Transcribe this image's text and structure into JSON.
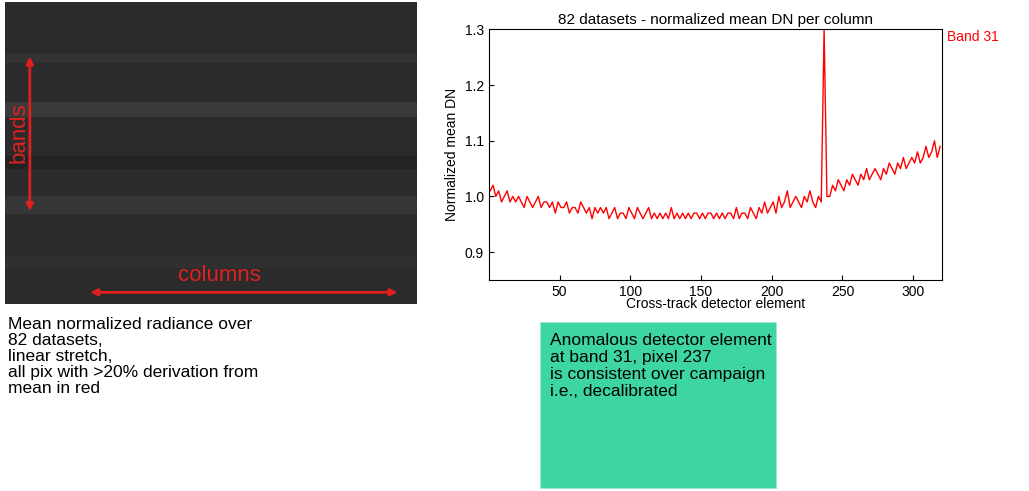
{
  "image_panel": {
    "vertical_label": "bands",
    "horizontal_label": "columns",
    "caption": "Mean normalized radiance over\n82 datasets,\nlinear stretch,\nall pix with >20% derivation from\nmean in red"
  },
  "chart_data": {
    "type": "line",
    "title": "82 datasets - normalized mean DN per column",
    "x_label": "Cross-track detector element",
    "y_label": "Normalized mean DN",
    "x": [
      1,
      3,
      5,
      7,
      9,
      11,
      13,
      15,
      17,
      19,
      21,
      23,
      25,
      27,
      29,
      31,
      33,
      35,
      37,
      39,
      41,
      43,
      45,
      47,
      49,
      51,
      53,
      55,
      57,
      59,
      61,
      63,
      65,
      67,
      69,
      71,
      73,
      75,
      77,
      79,
      81,
      83,
      85,
      87,
      89,
      91,
      93,
      95,
      97,
      99,
      101,
      103,
      105,
      107,
      109,
      111,
      113,
      115,
      117,
      119,
      121,
      123,
      125,
      127,
      129,
      131,
      133,
      135,
      137,
      139,
      141,
      143,
      145,
      147,
      149,
      151,
      153,
      155,
      157,
      159,
      161,
      163,
      165,
      167,
      169,
      171,
      173,
      175,
      177,
      179,
      181,
      183,
      185,
      187,
      189,
      191,
      193,
      195,
      197,
      199,
      201,
      203,
      205,
      207,
      209,
      211,
      213,
      215,
      217,
      219,
      221,
      223,
      225,
      227,
      229,
      231,
      233,
      235,
      237,
      239,
      241,
      243,
      245,
      247,
      249,
      251,
      253,
      255,
      257,
      259,
      261,
      263,
      265,
      267,
      269,
      271,
      273,
      275,
      277,
      279,
      281,
      283,
      285,
      287,
      289,
      291,
      293,
      295,
      297,
      299,
      301,
      303,
      305,
      307,
      309,
      311,
      313,
      315,
      317,
      319
    ],
    "series": [
      {
        "name": "Band 31",
        "color": "#ff0000",
        "values": [
          1.01,
          1.02,
          1.0,
          1.01,
          0.99,
          1.0,
          1.01,
          0.99,
          1.0,
          0.99,
          1.0,
          0.99,
          0.98,
          1.0,
          0.99,
          0.98,
          0.99,
          1.0,
          0.98,
          0.99,
          0.99,
          0.98,
          0.99,
          0.97,
          0.99,
          0.98,
          0.98,
          0.99,
          0.97,
          0.98,
          0.98,
          0.97,
          0.99,
          0.98,
          0.97,
          0.98,
          0.96,
          0.98,
          0.97,
          0.98,
          0.97,
          0.98,
          0.96,
          0.97,
          0.98,
          0.96,
          0.97,
          0.97,
          0.96,
          0.98,
          0.97,
          0.96,
          0.98,
          0.97,
          0.96,
          0.97,
          0.98,
          0.96,
          0.97,
          0.96,
          0.97,
          0.96,
          0.97,
          0.96,
          0.98,
          0.96,
          0.97,
          0.96,
          0.97,
          0.96,
          0.97,
          0.96,
          0.97,
          0.97,
          0.96,
          0.97,
          0.96,
          0.97,
          0.97,
          0.96,
          0.97,
          0.96,
          0.97,
          0.96,
          0.97,
          0.97,
          0.96,
          0.98,
          0.96,
          0.97,
          0.97,
          0.96,
          0.98,
          0.97,
          0.96,
          0.98,
          0.97,
          0.99,
          0.97,
          0.98,
          0.99,
          0.97,
          1.0,
          0.98,
          0.99,
          1.01,
          0.98,
          0.99,
          1.0,
          0.99,
          0.98,
          1.0,
          0.99,
          1.01,
          0.99,
          0.98,
          1.0,
          0.99,
          1.3,
          1.0,
          1.0,
          1.02,
          1.01,
          1.03,
          1.02,
          1.01,
          1.03,
          1.02,
          1.04,
          1.03,
          1.02,
          1.04,
          1.03,
          1.05,
          1.03,
          1.04,
          1.05,
          1.04,
          1.03,
          1.05,
          1.04,
          1.06,
          1.05,
          1.04,
          1.06,
          1.05,
          1.07,
          1.05,
          1.06,
          1.07,
          1.06,
          1.08,
          1.06,
          1.07,
          1.09,
          1.07,
          1.08,
          1.1,
          1.07,
          1.09
        ]
      }
    ],
    "xlim": [
      0,
      320
    ],
    "ylim": [
      0.85,
      1.3
    ],
    "xticks": [
      50,
      100,
      150,
      200,
      250,
      300
    ],
    "yticks": [
      0.9,
      1.0,
      1.1,
      1.2,
      1.3
    ]
  },
  "note": {
    "text": "Anomalous detector element\nat band 31, pixel 237\nis consistent over campaign\ni.e., decalibrated"
  }
}
